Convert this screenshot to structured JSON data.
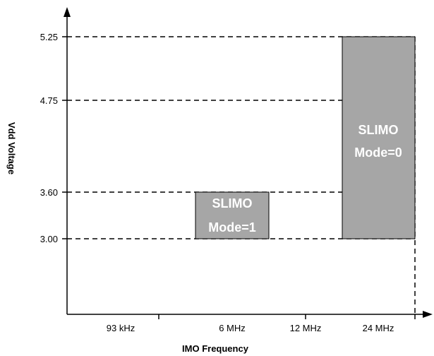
{
  "chart_data": {
    "type": "region",
    "xlabel": "IMO Frequency",
    "ylabel": "Vdd Voltage",
    "x_categories": [
      "93 kHz",
      "6 MHz",
      "12 MHz",
      "24 MHz"
    ],
    "y_ticks": [
      "3.00",
      "3.60",
      "4.75",
      "5.25"
    ],
    "regions": [
      {
        "label_lines": [
          "SLIMO",
          "Mode=1"
        ],
        "x": "6 MHz",
        "y_range": [
          3.0,
          3.6
        ]
      },
      {
        "label_lines": [
          "SLIMO",
          "Mode=0"
        ],
        "x": "24 MHz",
        "y_range": [
          3.0,
          5.25
        ]
      }
    ],
    "colors": {
      "region_fill": "#a6a6a6",
      "line": "#000000",
      "label_text": "#ffffff"
    }
  }
}
